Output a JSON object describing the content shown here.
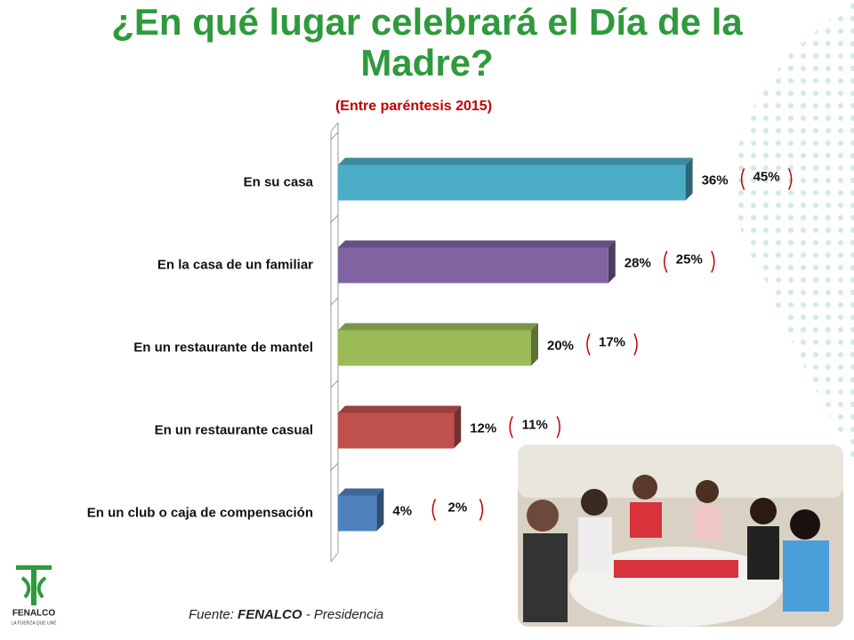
{
  "chart_data": {
    "type": "bar",
    "orientation": "horizontal",
    "title": "¿En qué lugar celebrará el Día de la Madre?",
    "subtitle": "(Entre paréntesis 2015)",
    "categories": [
      "En su casa",
      "En la casa de un familiar",
      "En un restaurante de mantel",
      "En un restaurante casual",
      "En un club o caja de compensación"
    ],
    "values": [
      36,
      28,
      20,
      12,
      4
    ],
    "value_labels": [
      "36%",
      "28%",
      "20%",
      "12%",
      "4%"
    ],
    "colors": [
      "#4bacc6",
      "#8064a2",
      "#9bbb59",
      "#c0504d",
      "#4f81bd"
    ],
    "previous": {
      "values": [
        45,
        25,
        17,
        11,
        2
      ],
      "value_labels": [
        "45%",
        "25%",
        "17%",
        "11%",
        "2%"
      ],
      "color": "#c00000"
    },
    "source": {
      "prefix": "Fuente:",
      "org": "FENALCO",
      "suffix": "- Presidencia"
    }
  },
  "logo": {
    "name": "FENALCO",
    "tagline": "LA FUERZA QUE UNE"
  }
}
